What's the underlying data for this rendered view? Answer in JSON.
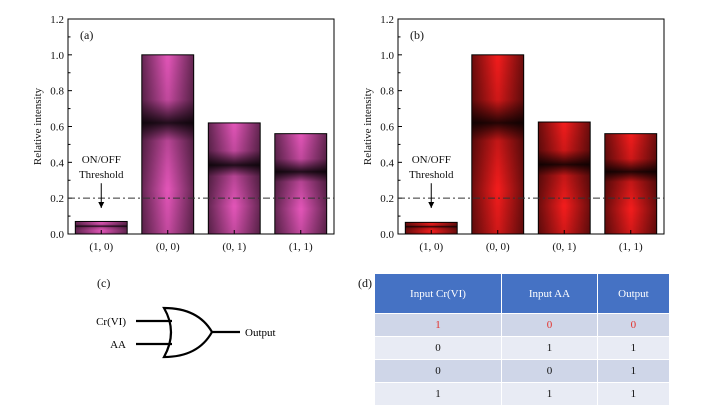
{
  "chart_data": [
    {
      "type": "bar",
      "panel_label": "(a)",
      "categories": [
        "(1, 0)",
        "(0, 0)",
        "(0, 1)",
        "(1, 1)"
      ],
      "values": [
        0.07,
        1.0,
        0.62,
        0.56
      ],
      "ylabel": "Relative intensity",
      "ylim": [
        0.0,
        1.2
      ],
      "yticks": [
        "0.0",
        "0.2",
        "0.4",
        "0.6",
        "0.8",
        "1.0",
        "1.2"
      ],
      "threshold": 0.2,
      "annotation": [
        "ON/OFF",
        "Threshold"
      ],
      "bar_color": "#e054b6"
    },
    {
      "type": "bar",
      "panel_label": "(b)",
      "categories": [
        "(1, 0)",
        "(0, 0)",
        "(0, 1)",
        "(1, 1)"
      ],
      "values": [
        0.065,
        1.0,
        0.625,
        0.56
      ],
      "ylabel": "Relative intensity",
      "ylim": [
        0.0,
        1.2
      ],
      "yticks": [
        "0.0",
        "0.2",
        "0.4",
        "0.6",
        "0.8",
        "1.0",
        "1.2"
      ],
      "threshold": 0.2,
      "annotation": [
        "ON/OFF",
        "Threshold"
      ],
      "bar_color": "#f01c1c"
    }
  ],
  "gate": {
    "panel_label": "(c)",
    "input1": "Cr(VI)",
    "input2": "AA",
    "output": "Output"
  },
  "truth_table": {
    "panel_label": "(d)",
    "headers": [
      "Input Cr(VI)",
      "Input AA",
      "Output"
    ],
    "rows": [
      [
        "1",
        "0",
        "0"
      ],
      [
        "0",
        "1",
        "1"
      ],
      [
        "0",
        "0",
        "1"
      ],
      [
        "1",
        "1",
        "1"
      ]
    ],
    "header_color": "#4572c4",
    "highlight_color": "#e4302a"
  }
}
